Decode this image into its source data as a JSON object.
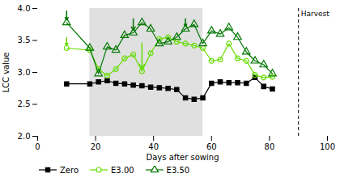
{
  "chart_data": {
    "type": "line",
    "xlabel": "Days after sowing",
    "ylabel": "LCC value",
    "xlim": [
      0,
      100
    ],
    "ylim": [
      2.0,
      4.0
    ],
    "xticks": [
      0,
      20,
      40,
      60,
      80,
      100
    ],
    "yticks": [
      {
        "value": 2.0,
        "label": "2.0"
      },
      {
        "value": 2.5,
        "label": "2.5"
      },
      {
        "value": 3.0,
        "label": "3.0"
      },
      {
        "value": 3.5,
        "label": "3.5"
      },
      {
        "value": 4.0,
        "label": "4.0"
      }
    ],
    "grid": false,
    "legend": "bottom",
    "x": [
      10,
      18,
      21,
      24,
      27,
      30,
      33,
      36,
      39,
      42,
      45,
      48,
      51,
      54,
      57,
      60,
      63,
      66,
      69,
      72,
      75,
      78,
      81
    ],
    "series": [
      {
        "name": "Zero",
        "color": "#000000",
        "marker": "square",
        "values": [
          2.82,
          2.82,
          2.85,
          2.87,
          2.83,
          2.82,
          2.8,
          2.79,
          2.77,
          2.76,
          2.75,
          2.73,
          2.6,
          2.58,
          2.6,
          2.83,
          2.85,
          2.84,
          2.84,
          2.83,
          2.92,
          2.78,
          2.74
        ]
      },
      {
        "name": "E3.00",
        "color": "#66dd00",
        "marker": "circle_open",
        "values": [
          3.38,
          3.35,
          3.05,
          2.95,
          3.05,
          3.22,
          3.28,
          3.02,
          3.3,
          3.52,
          3.55,
          3.48,
          3.45,
          3.42,
          3.38,
          3.18,
          3.2,
          3.45,
          3.22,
          3.18,
          2.96,
          2.92,
          2.93
        ],
        "arrows": {
          "x": [
            10,
            36
          ],
          "y_tail": [
            3.54,
            3.46
          ],
          "y_tip": [
            3.42,
            3.06
          ]
        }
      },
      {
        "name": "E3.50",
        "color": "#007700",
        "marker": "triangle_open",
        "values": [
          3.78,
          3.38,
          2.98,
          3.4,
          3.35,
          3.58,
          3.62,
          3.78,
          3.68,
          3.45,
          3.48,
          3.55,
          3.68,
          3.75,
          3.45,
          3.65,
          3.6,
          3.7,
          3.55,
          3.32,
          3.18,
          3.12,
          2.98
        ],
        "arrows": {
          "x": [
            10,
            33,
            51
          ],
          "y_tail": [
            3.96,
            3.84,
            3.84
          ],
          "y_tip": [
            3.82,
            3.66,
            3.72
          ]
        }
      }
    ],
    "shaded_x": [
      18,
      57
    ],
    "shaded_color": "#cccccc",
    "harvest": {
      "x": 90,
      "label": "Harvest"
    }
  }
}
